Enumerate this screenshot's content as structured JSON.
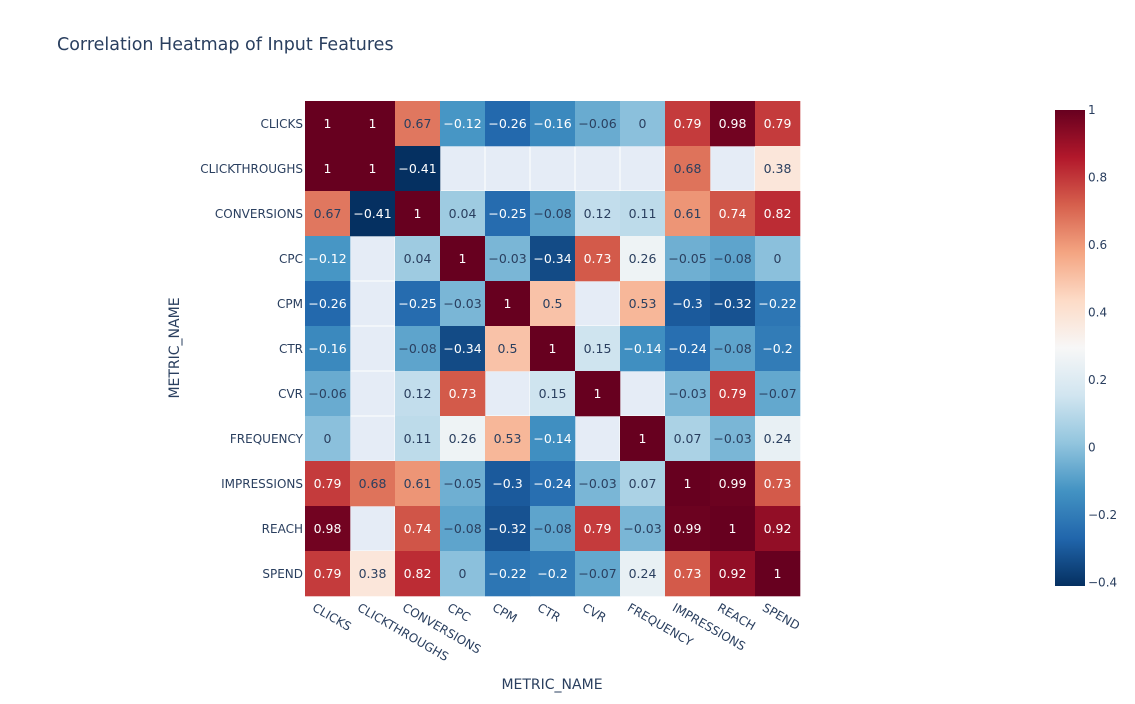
{
  "chart_data": {
    "type": "heatmap",
    "title": "Correlation Heatmap of Input Features",
    "xlabel": "METRIC_NAME",
    "ylabel": "METRIC_NAME",
    "x": [
      "CLICKS",
      "CLICKTHROUGHS",
      "CONVERSIONS",
      "CPC",
      "CPM",
      "CTR",
      "CVR",
      "FREQUENCY",
      "IMPRESSIONS",
      "REACH",
      "SPEND"
    ],
    "y": [
      "CLICKS",
      "CLICKTHROUGHS",
      "CONVERSIONS",
      "CPC",
      "CPM",
      "CTR",
      "CVR",
      "FREQUENCY",
      "IMPRESSIONS",
      "REACH",
      "SPEND"
    ],
    "z": [
      [
        1,
        1,
        0.67,
        -0.12,
        -0.26,
        -0.16,
        -0.06,
        0,
        0.79,
        0.98,
        0.79
      ],
      [
        1,
        1,
        -0.41,
        null,
        null,
        null,
        null,
        null,
        0.68,
        null,
        0.38
      ],
      [
        0.67,
        -0.41,
        1,
        0.04,
        -0.25,
        -0.08,
        0.12,
        0.11,
        0.61,
        0.74,
        0.82
      ],
      [
        -0.12,
        null,
        0.04,
        1,
        -0.03,
        -0.34,
        0.73,
        0.26,
        -0.05,
        -0.08,
        0
      ],
      [
        -0.26,
        null,
        -0.25,
        -0.03,
        1,
        0.5,
        null,
        0.53,
        -0.3,
        -0.32,
        -0.22
      ],
      [
        -0.16,
        null,
        -0.08,
        -0.34,
        0.5,
        1,
        0.15,
        -0.14,
        -0.24,
        -0.08,
        -0.2
      ],
      [
        -0.06,
        null,
        0.12,
        0.73,
        null,
        0.15,
        1,
        null,
        -0.03,
        0.79,
        -0.07
      ],
      [
        0,
        null,
        0.11,
        0.26,
        0.53,
        -0.14,
        null,
        1,
        0.07,
        -0.03,
        0.24
      ],
      [
        0.79,
        0.68,
        0.61,
        -0.05,
        -0.3,
        -0.24,
        -0.03,
        0.07,
        1,
        0.99,
        0.73
      ],
      [
        0.98,
        null,
        0.74,
        -0.08,
        -0.32,
        -0.08,
        0.79,
        -0.03,
        0.99,
        1,
        0.92
      ],
      [
        0.79,
        0.38,
        0.82,
        0,
        -0.22,
        -0.2,
        -0.07,
        0.24,
        0.73,
        0.92,
        1
      ]
    ],
    "zrange": [
      -0.41,
      1
    ],
    "colorscale": "RdBu",
    "colorbar": {
      "ticks": [
        1,
        0.8,
        0.6,
        0.4,
        0.2,
        0,
        -0.2,
        -0.4
      ],
      "tick_labels": [
        "1",
        "0.8",
        "0.6",
        "0.4",
        "0.2",
        "0",
        "−0.2",
        "−0.4"
      ]
    },
    "grid": true,
    "legend": "right"
  },
  "colors": {
    "text_dark": "#2a3f5f",
    "missing_cell": "#E5ECF6",
    "grid_line": "#ffffff",
    "cell_text_light": "#ffffff",
    "cell_text_dark": "#2a3f5f",
    "colorscale_stops": [
      "#053061",
      "#2166ac",
      "#4393c3",
      "#92c5de",
      "#d1e5f0",
      "#f7f7f7",
      "#fddbc7",
      "#f4a582",
      "#d6604d",
      "#b2182b",
      "#67001f"
    ]
  }
}
